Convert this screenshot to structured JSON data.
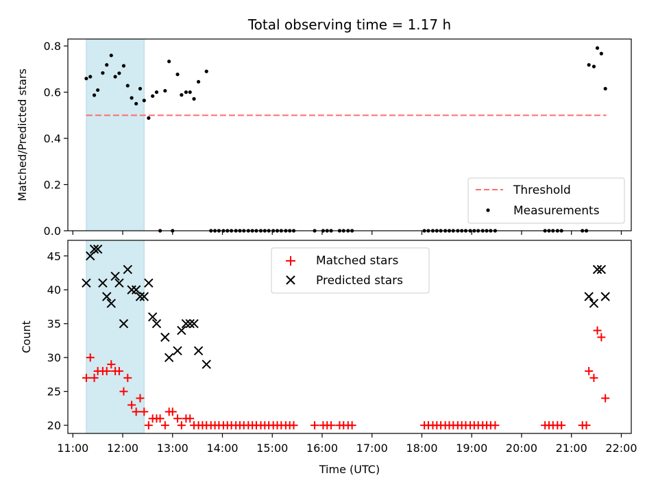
{
  "chart_data": [
    {
      "type": "scatter",
      "title": "Total observing time = 1.17 h",
      "ylabel": "Matched/Predicted stars",
      "xlabel": "",
      "x_unit": "hour (UTC)",
      "xlim": [
        10.9,
        22.2
      ],
      "ylim": [
        0,
        0.83
      ],
      "yticks": [
        0.0,
        0.2,
        0.4,
        0.6,
        0.8
      ],
      "ytick_labels": [
        "0.0",
        "0.2",
        "0.4",
        "0.6",
        "0.8"
      ],
      "shaded_span": [
        11.27,
        12.43
      ],
      "shade_color": "#add8e6",
      "legend_position": "lower-right",
      "threshold": {
        "name": "Threshold",
        "value": 0.5,
        "x_range": [
          11.27,
          21.7
        ],
        "color": "#ff6b6b"
      },
      "series": [
        {
          "name": "Measurements",
          "color": "#000000",
          "points": [
            [
              11.27,
              0.659
            ],
            [
              11.35,
              0.667
            ],
            [
              11.43,
              0.587
            ],
            [
              11.5,
              0.609
            ],
            [
              11.6,
              0.683
            ],
            [
              11.68,
              0.718
            ],
            [
              11.77,
              0.759
            ],
            [
              11.85,
              0.667
            ],
            [
              11.93,
              0.682
            ],
            [
              12.02,
              0.714
            ],
            [
              12.1,
              0.628
            ],
            [
              12.18,
              0.575
            ],
            [
              12.27,
              0.55
            ],
            [
              12.35,
              0.615
            ],
            [
              12.43,
              0.564
            ],
            [
              12.52,
              0.488
            ],
            [
              12.6,
              0.583
            ],
            [
              12.68,
              0.6
            ],
            [
              12.85,
              0.606
            ],
            [
              12.93,
              0.733
            ],
            [
              13.1,
              0.677
            ],
            [
              13.18,
              0.588
            ],
            [
              13.27,
              0.6
            ],
            [
              13.35,
              0.6
            ],
            [
              13.43,
              0.571
            ],
            [
              13.52,
              0.645
            ],
            [
              13.68,
              0.69
            ],
            [
              21.35,
              0.718
            ],
            [
              21.45,
              0.711
            ],
            [
              21.52,
              0.791
            ],
            [
              21.6,
              0.767
            ],
            [
              21.68,
              0.615
            ],
            [
              12.75,
              0
            ],
            [
              13.0,
              0
            ],
            [
              13.77,
              0
            ],
            [
              13.85,
              0
            ],
            [
              13.93,
              0
            ],
            [
              14.02,
              0
            ],
            [
              14.1,
              0
            ],
            [
              14.18,
              0
            ],
            [
              14.27,
              0
            ],
            [
              14.35,
              0
            ],
            [
              14.43,
              0
            ],
            [
              14.52,
              0
            ],
            [
              14.6,
              0
            ],
            [
              14.68,
              0
            ],
            [
              14.77,
              0
            ],
            [
              14.85,
              0
            ],
            [
              14.93,
              0
            ],
            [
              15.02,
              0
            ],
            [
              15.1,
              0
            ],
            [
              15.18,
              0
            ],
            [
              15.27,
              0
            ],
            [
              15.35,
              0
            ],
            [
              15.43,
              0
            ],
            [
              15.85,
              0
            ],
            [
              16.02,
              0
            ],
            [
              16.1,
              0
            ],
            [
              16.18,
              0
            ],
            [
              16.35,
              0
            ],
            [
              16.43,
              0
            ],
            [
              16.52,
              0
            ],
            [
              16.6,
              0
            ],
            [
              18.05,
              0
            ],
            [
              18.13,
              0
            ],
            [
              18.22,
              0
            ],
            [
              18.3,
              0
            ],
            [
              18.38,
              0
            ],
            [
              18.47,
              0
            ],
            [
              18.55,
              0
            ],
            [
              18.63,
              0
            ],
            [
              18.72,
              0
            ],
            [
              18.8,
              0
            ],
            [
              18.88,
              0
            ],
            [
              18.97,
              0
            ],
            [
              19.05,
              0
            ],
            [
              19.13,
              0
            ],
            [
              19.22,
              0
            ],
            [
              19.3,
              0
            ],
            [
              19.38,
              0
            ],
            [
              19.47,
              0
            ],
            [
              20.47,
              0
            ],
            [
              20.55,
              0
            ],
            [
              20.63,
              0
            ],
            [
              20.72,
              0
            ],
            [
              20.8,
              0
            ],
            [
              21.22,
              0
            ],
            [
              21.3,
              0
            ]
          ]
        }
      ]
    },
    {
      "type": "scatter",
      "title": "",
      "xlabel": "Time (UTC)",
      "ylabel": "Count",
      "x_unit": "hour (UTC)",
      "xlim": [
        10.9,
        22.2
      ],
      "ylim": [
        18.8,
        47.3
      ],
      "xticks": [
        11,
        12,
        13,
        14,
        15,
        16,
        17,
        18,
        19,
        20,
        21,
        22
      ],
      "xtick_labels": [
        "11:00",
        "12:00",
        "13:00",
        "14:00",
        "15:00",
        "16:00",
        "17:00",
        "18:00",
        "19:00",
        "20:00",
        "21:00",
        "22:00"
      ],
      "yticks": [
        20,
        25,
        30,
        35,
        40,
        45
      ],
      "ytick_labels": [
        "20",
        "25",
        "30",
        "35",
        "40",
        "45"
      ],
      "shaded_span": [
        11.27,
        12.43
      ],
      "shade_color": "#add8e6",
      "legend_position": "upper-center",
      "series": [
        {
          "name": "Matched stars",
          "marker": "plus",
          "color": "#ff0000",
          "points": [
            [
              11.27,
              27
            ],
            [
              11.35,
              30
            ],
            [
              11.43,
              27
            ],
            [
              11.5,
              28
            ],
            [
              11.6,
              28
            ],
            [
              11.68,
              28
            ],
            [
              11.77,
              29
            ],
            [
              11.85,
              28
            ],
            [
              11.93,
              28
            ],
            [
              12.02,
              25
            ],
            [
              12.1,
              27
            ],
            [
              12.18,
              23
            ],
            [
              12.27,
              22
            ],
            [
              12.35,
              24
            ],
            [
              12.43,
              22
            ],
            [
              12.52,
              20
            ],
            [
              12.6,
              21
            ],
            [
              12.68,
              21
            ],
            [
              12.75,
              21
            ],
            [
              12.85,
              20
            ],
            [
              12.93,
              22
            ],
            [
              13.0,
              22
            ],
            [
              13.1,
              21
            ],
            [
              13.18,
              20
            ],
            [
              13.27,
              21
            ],
            [
              13.35,
              21
            ],
            [
              13.43,
              20
            ],
            [
              13.52,
              20
            ],
            [
              13.6,
              20
            ],
            [
              13.68,
              20
            ],
            [
              13.77,
              20
            ],
            [
              13.85,
              20
            ],
            [
              13.93,
              20
            ],
            [
              14.02,
              20
            ],
            [
              14.1,
              20
            ],
            [
              14.18,
              20
            ],
            [
              14.27,
              20
            ],
            [
              14.35,
              20
            ],
            [
              14.43,
              20
            ],
            [
              14.52,
              20
            ],
            [
              14.6,
              20
            ],
            [
              14.68,
              20
            ],
            [
              14.77,
              20
            ],
            [
              14.85,
              20
            ],
            [
              14.93,
              20
            ],
            [
              15.02,
              20
            ],
            [
              15.1,
              20
            ],
            [
              15.18,
              20
            ],
            [
              15.27,
              20
            ],
            [
              15.35,
              20
            ],
            [
              15.43,
              20
            ],
            [
              15.85,
              20
            ],
            [
              16.02,
              20
            ],
            [
              16.1,
              20
            ],
            [
              16.18,
              20
            ],
            [
              16.35,
              20
            ],
            [
              16.43,
              20
            ],
            [
              16.52,
              20
            ],
            [
              16.6,
              20
            ],
            [
              18.05,
              20
            ],
            [
              18.13,
              20
            ],
            [
              18.22,
              20
            ],
            [
              18.3,
              20
            ],
            [
              18.38,
              20
            ],
            [
              18.47,
              20
            ],
            [
              18.55,
              20
            ],
            [
              18.63,
              20
            ],
            [
              18.72,
              20
            ],
            [
              18.8,
              20
            ],
            [
              18.88,
              20
            ],
            [
              18.97,
              20
            ],
            [
              19.05,
              20
            ],
            [
              19.13,
              20
            ],
            [
              19.22,
              20
            ],
            [
              19.3,
              20
            ],
            [
              19.38,
              20
            ],
            [
              19.47,
              20
            ],
            [
              20.47,
              20
            ],
            [
              20.55,
              20
            ],
            [
              20.63,
              20
            ],
            [
              20.72,
              20
            ],
            [
              20.8,
              20
            ],
            [
              21.22,
              20
            ],
            [
              21.3,
              20
            ],
            [
              21.35,
              28
            ],
            [
              21.45,
              27
            ],
            [
              21.52,
              34
            ],
            [
              21.6,
              33
            ],
            [
              21.68,
              24
            ]
          ]
        },
        {
          "name": "Predicted stars",
          "marker": "cross",
          "color": "#000000",
          "points": [
            [
              11.27,
              41
            ],
            [
              11.35,
              45
            ],
            [
              11.43,
              46
            ],
            [
              11.5,
              46
            ],
            [
              11.6,
              41
            ],
            [
              11.68,
              39
            ],
            [
              11.77,
              38
            ],
            [
              11.85,
              42
            ],
            [
              11.93,
              41
            ],
            [
              12.02,
              35
            ],
            [
              12.1,
              43
            ],
            [
              12.18,
              40
            ],
            [
              12.27,
              40
            ],
            [
              12.35,
              39
            ],
            [
              12.43,
              39
            ],
            [
              12.52,
              41
            ],
            [
              12.6,
              36
            ],
            [
              12.68,
              35
            ],
            [
              12.85,
              33
            ],
            [
              12.93,
              30
            ],
            [
              13.1,
              31
            ],
            [
              13.18,
              34
            ],
            [
              13.27,
              35
            ],
            [
              13.35,
              35
            ],
            [
              13.43,
              35
            ],
            [
              13.52,
              31
            ],
            [
              13.68,
              29
            ],
            [
              21.35,
              39
            ],
            [
              21.45,
              38
            ],
            [
              21.52,
              43
            ],
            [
              21.6,
              43
            ],
            [
              21.68,
              39
            ]
          ]
        }
      ]
    }
  ]
}
